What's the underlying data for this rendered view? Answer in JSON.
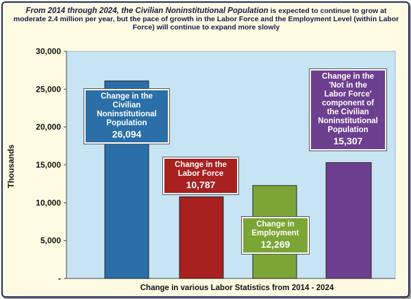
{
  "title_line1": "From 2014 through 2024, the Civilian Noninstitutional Population",
  "title_rest": "is expected to continue to grow at moderate 2.4 million per year, but the pace of growth in the Labor Force and the Employment Level (within Labor Force) will continue to expand more slowly",
  "colors": {
    "plot_bg": "#c6e4f4",
    "frame_bg": "#fffbe3",
    "bar1": "#2a6fa8",
    "bar2": "#a8201f",
    "bar3": "#7ba534",
    "bar4": "#6d3f8f"
  },
  "chart_data": {
    "type": "bar",
    "title": "From 2014 through 2024, the Civilian Noninstitutional Population is expected to continue to grow at moderate 2.4 million per year, but the pace of growth in the Labor Force and the Employment Level (within Labor Force) will continue to expand more slowly",
    "xlabel": "Change in various Labor Statistics from 2014 - 2024",
    "ylabel": "Thousands",
    "ylim": [
      0,
      30000
    ],
    "yticks": [
      "-",
      "5,000",
      "10,000",
      "15,000",
      "20,000",
      "25,000",
      "30,000"
    ],
    "grid": false,
    "values": [
      26094,
      10787,
      12269,
      15307
    ],
    "labels": [
      {
        "lines": [
          "Change in the",
          "Civilian",
          "Noninstitutional",
          "Population"
        ],
        "value_text": "26,094"
      },
      {
        "lines": [
          "Change in the",
          "Labor Force"
        ],
        "value_text": "10,787"
      },
      {
        "lines": [
          "Change in",
          "Employment"
        ],
        "value_text": "12,269"
      },
      {
        "lines": [
          "Change in the",
          "'Not in the",
          "Labor Force'",
          "component of",
          "the Civilian",
          "Noninstitutional",
          "Population"
        ],
        "value_text": "15,307"
      }
    ]
  }
}
